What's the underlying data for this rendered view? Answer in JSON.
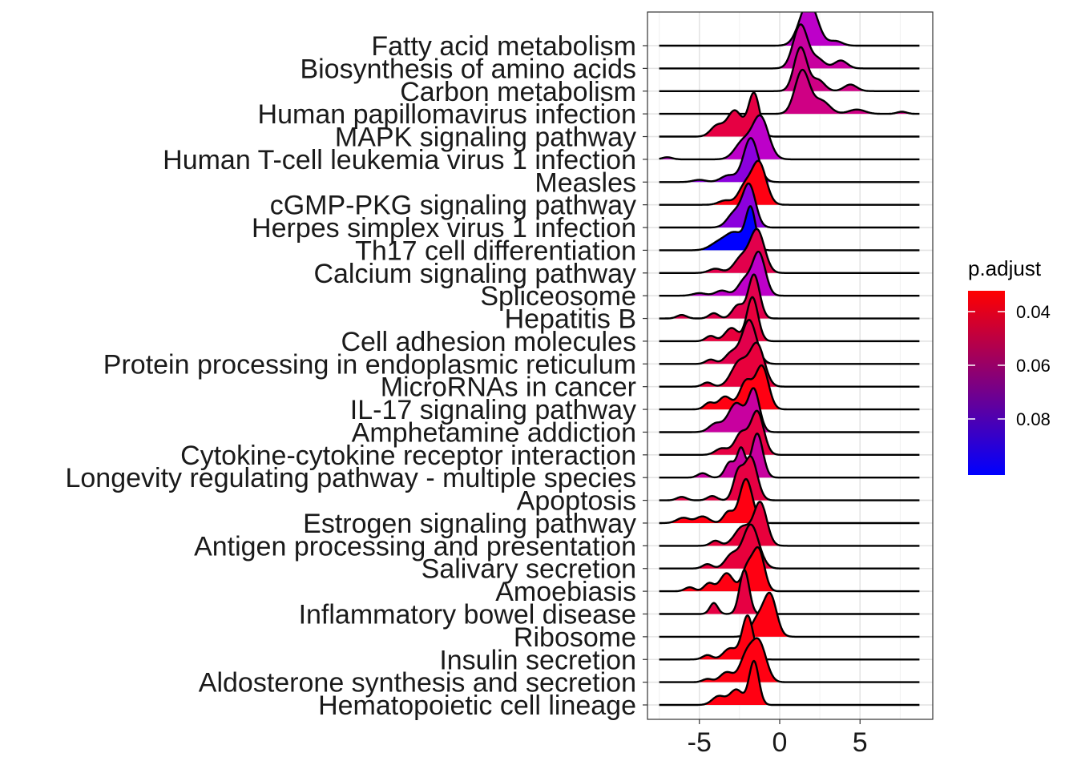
{
  "chart_data": {
    "type": "ridgeline",
    "xlim": [
      -8.4,
      9.0
    ],
    "x_ticks": [
      -5,
      0,
      5
    ],
    "x_tick_labels": [
      "-5",
      "0",
      "5"
    ],
    "grid": true,
    "legend": {
      "title": "p.adjust",
      "placement": "right",
      "range": [
        0.0605,
        0.047
      ],
      "ticks": [
        0.04,
        0.06,
        0.08
      ],
      "tick_labels": [
        "0.04",
        "0.06",
        "0.08"
      ],
      "colors": [
        "#ff0000",
        "#0000ff"
      ]
    },
    "series": [
      {
        "name": "Fatty acid metabolism",
        "p_adjust": 0.078,
        "color": "#bd00c9",
        "peaks": [
          [
            1.8,
            0.55,
            1.0
          ],
          [
            3.5,
            0.4,
            0.1
          ]
        ]
      },
      {
        "name": "Biosynthesis of amino acids",
        "p_adjust": 0.07,
        "color": "#c8009f",
        "peaks": [
          [
            1.3,
            0.45,
            1.0
          ],
          [
            2.4,
            0.4,
            0.2
          ],
          [
            3.8,
            0.4,
            0.18
          ]
        ]
      },
      {
        "name": "Carbon metabolism",
        "p_adjust": 0.067,
        "color": "#cf0084",
        "peaks": [
          [
            1.3,
            0.4,
            1.0
          ],
          [
            2.4,
            0.4,
            0.25
          ],
          [
            4.4,
            0.4,
            0.15
          ]
        ]
      },
      {
        "name": "Human papillomavirus infection",
        "p_adjust": 0.066,
        "color": "#cf0084",
        "peaks": [
          [
            1.4,
            0.45,
            1.0
          ],
          [
            2.6,
            0.5,
            0.3
          ],
          [
            4.8,
            0.5,
            0.1
          ],
          [
            7.6,
            0.3,
            0.05
          ]
        ]
      },
      {
        "name": "MAPK signaling pathway",
        "p_adjust": 0.056,
        "color": "#e60043",
        "peaks": [
          [
            -1.6,
            0.35,
            1.0
          ],
          [
            -2.8,
            0.45,
            0.6
          ],
          [
            -3.9,
            0.4,
            0.25
          ]
        ]
      },
      {
        "name": "Human T-cell leukemia virus 1 infection",
        "p_adjust": 0.078,
        "color": "#bd00c9",
        "peaks": [
          [
            -1.2,
            0.5,
            1.0
          ],
          [
            -2.3,
            0.5,
            0.4
          ],
          [
            -7.0,
            0.3,
            0.05
          ]
        ]
      },
      {
        "name": "Measles",
        "p_adjust": 0.084,
        "color": "#8b00dd",
        "peaks": [
          [
            -1.8,
            0.45,
            1.0
          ],
          [
            -3.2,
            0.45,
            0.15
          ],
          [
            -5.0,
            0.4,
            0.05
          ]
        ]
      },
      {
        "name": "cGMP-PKG signaling pathway",
        "p_adjust": 0.044,
        "color": "#ff0012",
        "peaks": [
          [
            -1.3,
            0.45,
            1.0
          ],
          [
            -2.2,
            0.4,
            0.4
          ],
          [
            -3.4,
            0.4,
            0.1
          ]
        ]
      },
      {
        "name": "Herpes simplex virus 1 infection",
        "p_adjust": 0.087,
        "color": "#8b00dd",
        "peaks": [
          [
            -1.9,
            0.4,
            1.0
          ],
          [
            -2.8,
            0.45,
            0.35
          ]
        ]
      },
      {
        "name": "Th17 cell differentiation",
        "p_adjust": 0.1,
        "color": "#0000ff",
        "peaks": [
          [
            -1.8,
            0.3,
            1.0
          ],
          [
            -2.8,
            0.6,
            0.45
          ],
          [
            -3.9,
            0.5,
            0.15
          ]
        ]
      },
      {
        "name": "Calcium signaling pathway",
        "p_adjust": 0.057,
        "color": "#e2004c",
        "peaks": [
          [
            -1.4,
            0.45,
            1.0
          ],
          [
            -2.4,
            0.45,
            0.35
          ],
          [
            -4.0,
            0.4,
            0.1
          ]
        ]
      },
      {
        "name": "Spliceosome",
        "p_adjust": 0.08,
        "color": "#bd00c9",
        "peaks": [
          [
            -1.3,
            0.4,
            1.0
          ],
          [
            -2.2,
            0.4,
            0.35
          ],
          [
            -3.6,
            0.4,
            0.12
          ],
          [
            -5.0,
            0.4,
            0.06
          ]
        ]
      },
      {
        "name": "Hepatitis B",
        "p_adjust": 0.058,
        "color": "#e2004c",
        "peaks": [
          [
            -1.6,
            0.35,
            1.0
          ],
          [
            -2.6,
            0.35,
            0.3
          ],
          [
            -4.1,
            0.3,
            0.12
          ],
          [
            -6.1,
            0.3,
            0.08
          ]
        ]
      },
      {
        "name": "Cell adhesion molecules",
        "p_adjust": 0.054,
        "color": "#e8003c",
        "peaks": [
          [
            -1.7,
            0.35,
            1.0
          ],
          [
            -3.0,
            0.4,
            0.3
          ],
          [
            -4.3,
            0.3,
            0.12
          ]
        ]
      },
      {
        "name": "Protein processing in endoplasmic reticulum",
        "p_adjust": 0.056,
        "color": "#e2004c",
        "peaks": [
          [
            -1.9,
            0.45,
            1.0
          ],
          [
            -3.0,
            0.4,
            0.25
          ],
          [
            -4.3,
            0.3,
            0.1
          ]
        ]
      },
      {
        "name": "MicroRNAs in cancer",
        "p_adjust": 0.053,
        "color": "#e8003c",
        "peaks": [
          [
            -1.4,
            0.45,
            1.0
          ],
          [
            -2.5,
            0.5,
            0.6
          ],
          [
            -4.5,
            0.3,
            0.1
          ]
        ]
      },
      {
        "name": "IL-17 signaling pathway",
        "p_adjust": 0.046,
        "color": "#ff0012",
        "peaks": [
          [
            -1.1,
            0.4,
            1.0
          ],
          [
            -2.1,
            0.4,
            0.65
          ],
          [
            -3.4,
            0.4,
            0.3
          ],
          [
            -4.4,
            0.3,
            0.15
          ]
        ]
      },
      {
        "name": "Amphetamine addiction",
        "p_adjust": 0.07,
        "color": "#c8009f",
        "peaks": [
          [
            -1.6,
            0.35,
            1.0
          ],
          [
            -2.7,
            0.5,
            0.7
          ],
          [
            -4.0,
            0.4,
            0.2
          ]
        ]
      },
      {
        "name": "Cytokine-cytokine receptor interaction",
        "p_adjust": 0.055,
        "color": "#e60043",
        "peaks": [
          [
            -1.4,
            0.4,
            1.0
          ],
          [
            -2.4,
            0.4,
            0.5
          ],
          [
            -3.6,
            0.4,
            0.15
          ]
        ]
      },
      {
        "name": "Longevity regulating pathway - multiple species",
        "p_adjust": 0.07,
        "color": "#c8009f",
        "peaks": [
          [
            -1.4,
            0.35,
            1.0
          ],
          [
            -2.4,
            0.25,
            0.65
          ],
          [
            -3.1,
            0.3,
            0.35
          ],
          [
            -4.8,
            0.3,
            0.1
          ]
        ]
      },
      {
        "name": "Apoptosis",
        "p_adjust": 0.055,
        "color": "#e60043",
        "peaks": [
          [
            -1.8,
            0.4,
            1.0
          ],
          [
            -2.6,
            0.3,
            0.6
          ],
          [
            -4.2,
            0.3,
            0.1
          ],
          [
            -6.1,
            0.3,
            0.08
          ]
        ]
      },
      {
        "name": "Estrogen signaling pathway",
        "p_adjust": 0.044,
        "color": "#ff0012",
        "peaks": [
          [
            -2.1,
            0.4,
            1.0
          ],
          [
            -3.2,
            0.3,
            0.25
          ],
          [
            -4.8,
            0.4,
            0.15
          ],
          [
            -6.0,
            0.4,
            0.12
          ]
        ]
      },
      {
        "name": "Antigen processing and presentation",
        "p_adjust": 0.054,
        "color": "#e8003c",
        "peaks": [
          [
            -1.2,
            0.4,
            1.0
          ],
          [
            -2.3,
            0.5,
            0.45
          ],
          [
            -4.0,
            0.3,
            0.12
          ]
        ]
      },
      {
        "name": "Salivary secretion",
        "p_adjust": 0.053,
        "color": "#e8003c",
        "peaks": [
          [
            -1.8,
            0.5,
            1.0
          ],
          [
            -3.0,
            0.4,
            0.3
          ],
          [
            -4.5,
            0.3,
            0.1
          ]
        ]
      },
      {
        "name": "Amoebiasis",
        "p_adjust": 0.047,
        "color": "#ff0012",
        "peaks": [
          [
            -1.3,
            0.35,
            1.0
          ],
          [
            -2.0,
            0.35,
            0.6
          ],
          [
            -3.3,
            0.4,
            0.45
          ],
          [
            -4.4,
            0.3,
            0.2
          ],
          [
            -5.6,
            0.3,
            0.1
          ]
        ]
      },
      {
        "name": "Inflammatory bowel disease",
        "p_adjust": 0.055,
        "color": "#e60043",
        "peaks": [
          [
            -2.2,
            0.3,
            1.0
          ],
          [
            -4.1,
            0.25,
            0.25
          ]
        ]
      },
      {
        "name": "Ribosome",
        "p_adjust": 0.044,
        "color": "#ff0012",
        "peaks": [
          [
            -0.6,
            0.4,
            1.0
          ],
          [
            -1.4,
            0.4,
            0.4
          ]
        ]
      },
      {
        "name": "Insulin secretion",
        "p_adjust": 0.047,
        "color": "#ff0012",
        "peaks": [
          [
            -2.0,
            0.35,
            1.0
          ],
          [
            -3.1,
            0.4,
            0.25
          ],
          [
            -4.5,
            0.3,
            0.1
          ]
        ]
      },
      {
        "name": "Aldosterone synthesis and secretion",
        "p_adjust": 0.044,
        "color": "#ff0012",
        "peaks": [
          [
            -1.3,
            0.45,
            1.0
          ],
          [
            -2.1,
            0.4,
            0.6
          ],
          [
            -3.3,
            0.4,
            0.25
          ],
          [
            -4.5,
            0.3,
            0.08
          ]
        ]
      },
      {
        "name": "Hematopoietic cell lineage",
        "p_adjust": 0.044,
        "color": "#ff0012",
        "peaks": [
          [
            -1.6,
            0.3,
            1.0
          ],
          [
            -2.7,
            0.4,
            0.35
          ],
          [
            -3.8,
            0.4,
            0.2
          ]
        ]
      }
    ]
  }
}
